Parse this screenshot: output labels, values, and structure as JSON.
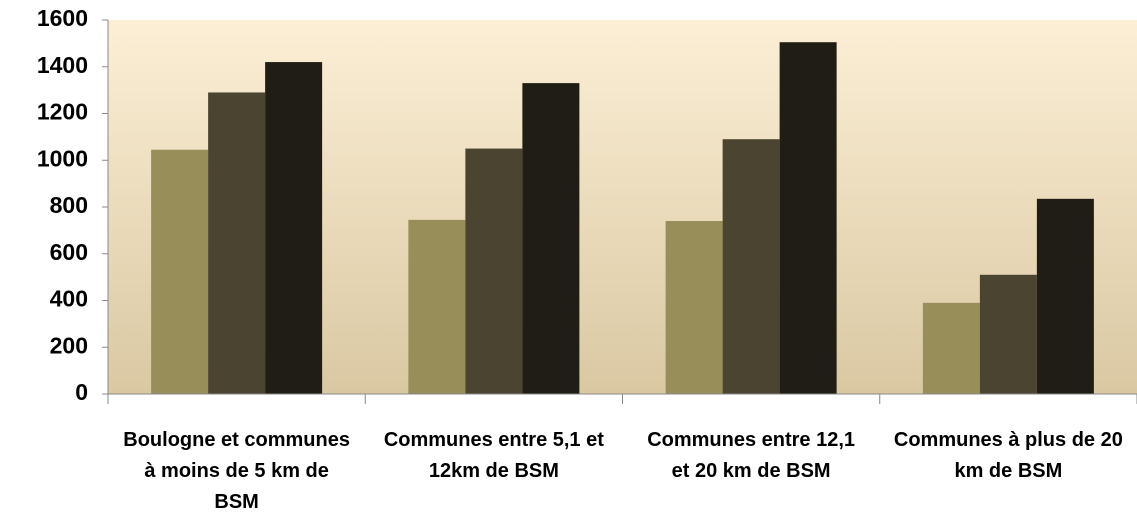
{
  "chart_data": {
    "type": "bar",
    "categories": [
      "Boulogne et communes à moins de 5 km de BSM",
      "Communes entre 5,1 et 12km de BSM",
      "Communes entre 12,1 et 20 km de BSM",
      "Communes à plus de 20 km de BSM"
    ],
    "series": [
      {
        "color": "#978e5a",
        "values": [
          1045,
          745,
          740,
          390
        ]
      },
      {
        "color": "#4a4430",
        "values": [
          1290,
          1050,
          1090,
          510
        ]
      },
      {
        "color": "#201e14",
        "values": [
          1420,
          1330,
          1505,
          835
        ]
      }
    ],
    "ylim": [
      0,
      1600
    ],
    "yticks": [
      0,
      200,
      400,
      600,
      800,
      1000,
      1200,
      1400,
      1600
    ],
    "grid": false
  }
}
